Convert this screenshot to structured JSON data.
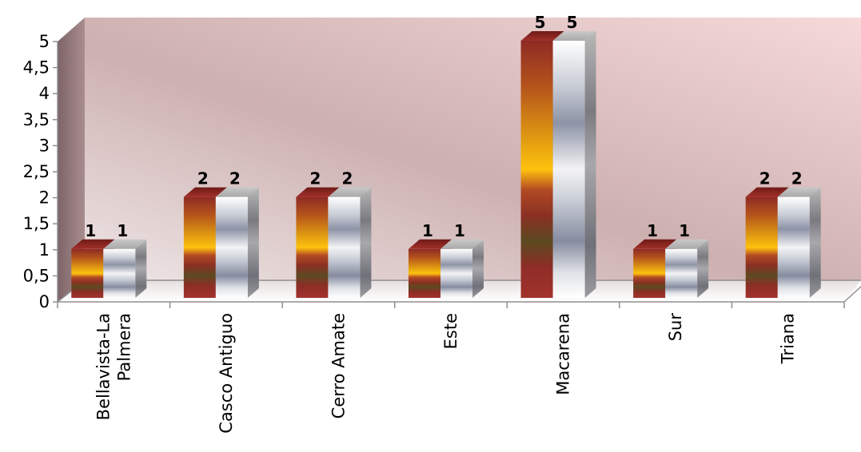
{
  "chart_data": {
    "type": "bar",
    "style": "3d-clustered-column",
    "categories": [
      [
        "Bellavista-La",
        "Palmera"
      ],
      [
        "Casco Antiguo"
      ],
      [
        "Cerro Amate"
      ],
      [
        "Este"
      ],
      [
        "Macarena"
      ],
      [
        "Sur"
      ],
      [
        "Triana"
      ]
    ],
    "series": [
      {
        "values": [
          1,
          2,
          2,
          1,
          5,
          1,
          2
        ]
      },
      {
        "values": [
          1,
          2,
          2,
          1,
          5,
          1,
          2
        ]
      }
    ],
    "yticks": [
      "0",
      "0,5",
      "1",
      "1,5",
      "2",
      "2,5",
      "3",
      "3,5",
      "4",
      "4,5",
      "5"
    ],
    "ylim": [
      0,
      5
    ],
    "legend": "none",
    "data_labels": true,
    "colors": {
      "wall": "#d7a9ab",
      "series_1": "#9b2a25",
      "series_2": "#b7bcc8"
    }
  }
}
